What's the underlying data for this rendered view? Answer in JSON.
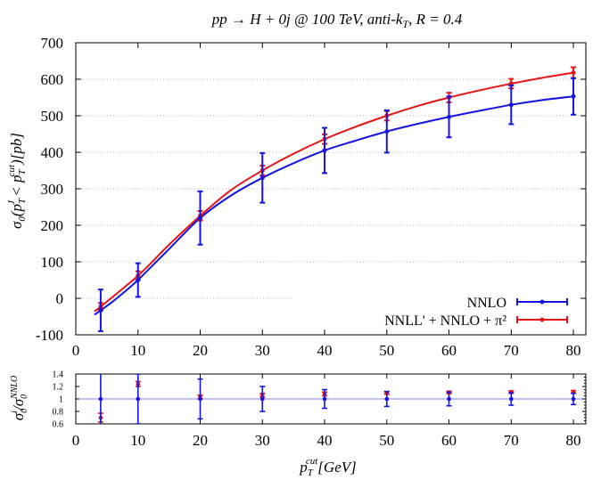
{
  "chart_data": [
    {
      "type": "line",
      "title": "pp → H + 0j @ 100 TeV, anti-k_T, R = 0.4",
      "title_parts": {
        "main": "pp → H + 0j @ 100 TeV, anti-k",
        "main_sub": "T",
        "tail": ", R = 0.4"
      },
      "xlabel": "p_T^cut [GeV]",
      "xlabel_parts": {
        "base": "p",
        "sub": "T",
        "sup": "cut",
        "unit": "[GeV]"
      },
      "ylabel": "σ_0(p_T^J < p_T^cut)[pb]",
      "ylabel_parts": {
        "a": "σ",
        "a_sub": "0",
        "b": "(p",
        "b_sub": "T",
        "b_sup": "J",
        "c": " < p",
        "c_sub": "T",
        "c_sup": "cut",
        "d": ")[pb]"
      },
      "xlim": [
        0,
        82
      ],
      "ylim": [
        -100,
        700
      ],
      "xticks": [
        0,
        10,
        20,
        30,
        40,
        50,
        60,
        70,
        80
      ],
      "yticks": [
        -100,
        0,
        100,
        200,
        300,
        400,
        500,
        600,
        700
      ],
      "grid": "horizontal-dotted",
      "legend_position": "bottom-right",
      "series": [
        {
          "name": "NNLO",
          "color": "#1414e6",
          "x": [
            4,
            10,
            20,
            30,
            40,
            50,
            60,
            70,
            80
          ],
          "y": [
            -33,
            50,
            220,
            330,
            405,
            457,
            497,
            530,
            553
          ],
          "yerr": [
            57,
            46,
            73,
            68,
            62,
            58,
            56,
            53,
            50
          ],
          "curve_x": [
            3,
            4,
            6,
            8,
            10,
            12,
            15,
            20,
            25,
            30,
            35,
            40,
            45,
            50,
            55,
            60,
            65,
            70,
            75,
            80
          ],
          "curve_y": [
            -45,
            -33,
            -8,
            20,
            50,
            84,
            135,
            220,
            282,
            330,
            370,
            405,
            432,
            457,
            478,
            497,
            514,
            530,
            543,
            553
          ]
        },
        {
          "name": "NNLL' + NNLO + π²",
          "color": "#e61414",
          "x": [
            4,
            10,
            20,
            30,
            40,
            50,
            60,
            70,
            80
          ],
          "y": [
            -23,
            62,
            226,
            350,
            436,
            500,
            550,
            588,
            618
          ],
          "yerr": [
            10,
            12,
            13,
            13,
            13,
            13,
            13,
            13,
            15
          ],
          "curve_x": [
            3,
            4,
            6,
            8,
            10,
            12,
            15,
            20,
            25,
            30,
            35,
            40,
            45,
            50,
            55,
            60,
            65,
            70,
            75,
            80
          ],
          "curve_y": [
            -36,
            -23,
            5,
            33,
            62,
            95,
            147,
            226,
            297,
            350,
            396,
            436,
            470,
            500,
            527,
            550,
            570,
            588,
            604,
            618
          ]
        }
      ]
    },
    {
      "type": "scatter",
      "ylabel": "σ_0^i / σ_0^NNLO",
      "ylabel_parts": {
        "a": "σ",
        "a_sup": "i",
        "a_sub": "0",
        "b": "/σ",
        "b_sup": "NNLO",
        "b_sub": "0"
      },
      "xlim": [
        0,
        82
      ],
      "ylim": [
        0.6,
        1.4
      ],
      "xticks": [
        0,
        10,
        20,
        30,
        40,
        50,
        60,
        70,
        80
      ],
      "yticks": [
        0.6,
        0.8,
        1,
        1.2,
        1.4
      ],
      "ytick_labels": [
        "0.6",
        "0.8",
        "1",
        "1.2",
        "1.4"
      ],
      "reference_line": 1.0,
      "series": [
        {
          "name": "NNLO",
          "color": "#1414e6",
          "x": [
            4,
            10,
            20,
            30,
            40,
            50,
            60,
            70,
            80
          ],
          "y": [
            1.0,
            1.0,
            1.0,
            1.0,
            1.0,
            1.0,
            1.0,
            1.0,
            1.0
          ],
          "yerr": [
            0.45,
            0.4,
            0.32,
            0.2,
            0.15,
            0.12,
            0.11,
            0.1,
            0.09
          ]
        },
        {
          "name": "NNLL' + NNLO + π²",
          "color": "#e61414",
          "x": [
            4,
            10,
            20,
            30,
            40,
            50,
            60,
            70,
            80
          ],
          "y": [
            0.7,
            1.24,
            1.03,
            1.06,
            1.08,
            1.095,
            1.105,
            1.11,
            1.115
          ],
          "yerr": [
            0.07,
            0.04,
            0.03,
            0.03,
            0.03,
            0.02,
            0.02,
            0.02,
            0.02
          ]
        }
      ]
    }
  ]
}
